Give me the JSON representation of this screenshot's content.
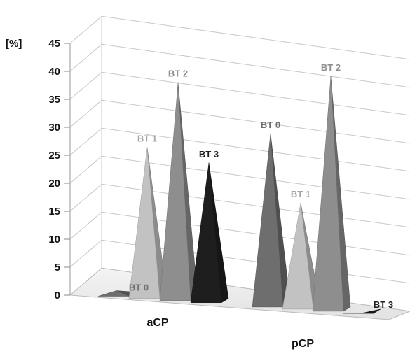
{
  "chart_data": {
    "type": "bar",
    "style": "3d-pyramid",
    "ylabel": "[%]",
    "ylim": [
      0,
      45
    ],
    "yticks": [
      "0",
      "5",
      "10",
      "15",
      "20",
      "25",
      "30",
      "35",
      "40",
      "45"
    ],
    "grid": true,
    "categories": [
      "aCP",
      "pCP"
    ],
    "series": [
      {
        "name": "BT 0",
        "color": "#6e6e6e",
        "values": [
          1,
          31
        ]
      },
      {
        "name": "BT 1",
        "color": "#c2c2c2",
        "values": [
          27,
          19
        ]
      },
      {
        "name": "BT 2",
        "color": "#8e8e8e",
        "values": [
          39,
          42
        ]
      },
      {
        "name": "BT 3",
        "color": "#1e1e1e",
        "values": [
          25,
          0
        ]
      }
    ]
  }
}
